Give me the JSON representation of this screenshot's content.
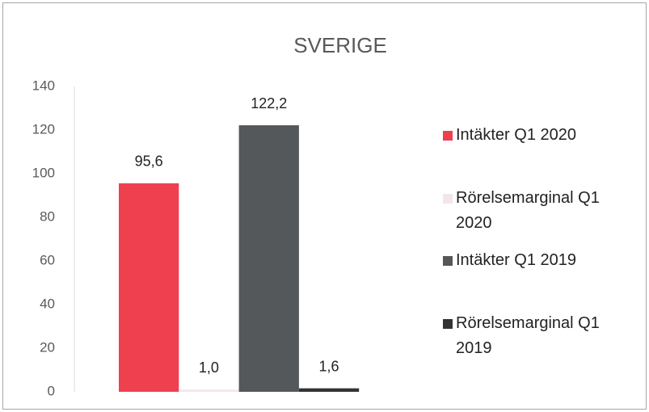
{
  "chart_data": {
    "type": "bar",
    "title": "SVERIGE",
    "categories": [
      null
    ],
    "series": [
      {
        "name": "Intäkter Q1 2020",
        "color": "#ef4050",
        "values": [
          95.6
        ],
        "value_labels": [
          "95,6"
        ]
      },
      {
        "name": "Rörelsemarginal Q1 2020",
        "color": "#f2e6ea",
        "values": [
          1.0
        ],
        "value_labels": [
          "1,0"
        ]
      },
      {
        "name": "Intäkter Q1 2019",
        "color": "#54585a",
        "values": [
          122.2
        ],
        "value_labels": [
          "122,2"
        ]
      },
      {
        "name": "Rörelsemarginal Q1 2019",
        "color": "#333333",
        "values": [
          1.6
        ],
        "value_labels": [
          "1,6"
        ]
      }
    ],
    "ylim": [
      0,
      140
    ],
    "yticks": [
      0,
      20,
      40,
      60,
      80,
      100,
      120,
      140
    ],
    "grid": false,
    "legend": "right"
  }
}
